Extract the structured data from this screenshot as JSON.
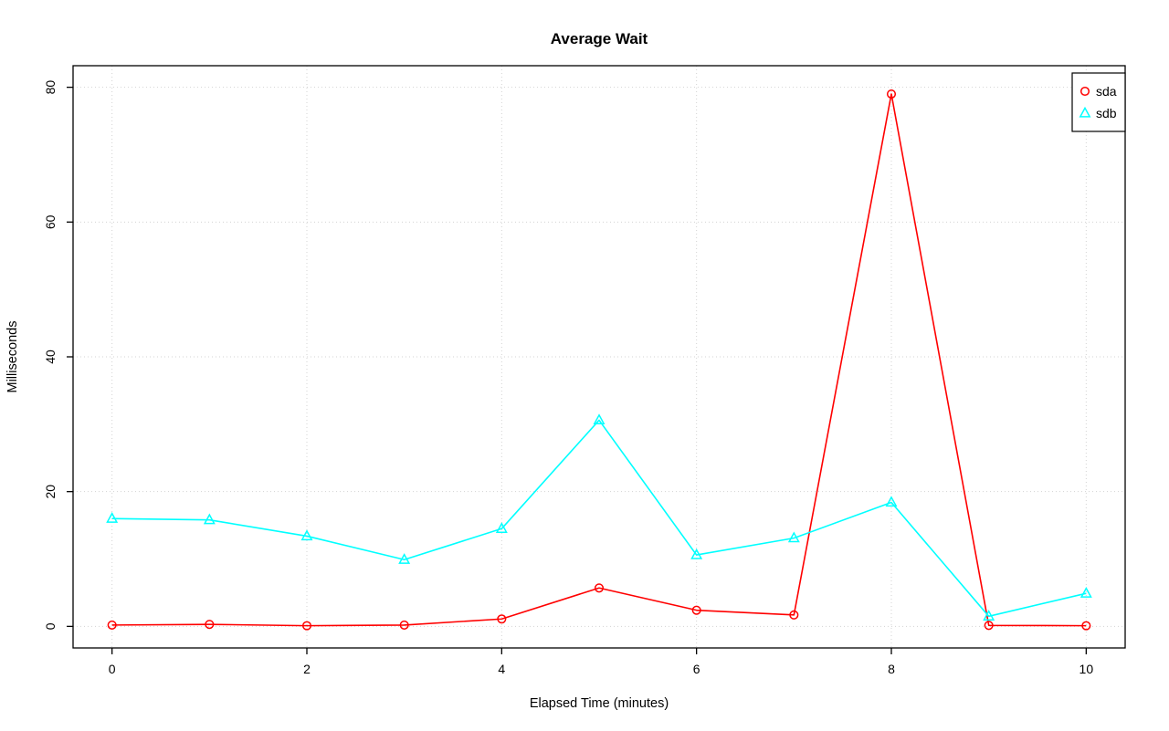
{
  "chart_data": {
    "type": "line",
    "title": "Average Wait",
    "xlabel": "Elapsed Time (minutes)",
    "ylabel": "Milliseconds",
    "x": [
      0,
      1,
      2,
      3,
      4,
      5,
      6,
      7,
      8,
      9,
      10
    ],
    "series": [
      {
        "name": "sda",
        "color": "#ff0000",
        "marker": "circle",
        "values": [
          0.2,
          0.3,
          0.1,
          0.2,
          1.1,
          5.7,
          2.4,
          1.7,
          79,
          0.15,
          0.1
        ]
      },
      {
        "name": "sdb",
        "color": "#00ffff",
        "marker": "triangle",
        "values": [
          16,
          15.8,
          13.4,
          9.9,
          14.5,
          30.6,
          10.6,
          13.1,
          18.4,
          1.5,
          4.9
        ]
      }
    ],
    "xlim": [
      0,
      10
    ],
    "ylim": [
      0,
      80
    ],
    "xticks": [
      0,
      2,
      4,
      6,
      8,
      10
    ],
    "yticks": [
      0,
      20,
      40,
      60,
      80
    ],
    "grid": true,
    "grid_color": "#d3d3d3",
    "legend_position": "top-right",
    "legend_labels": [
      "sda",
      "sdb"
    ]
  }
}
